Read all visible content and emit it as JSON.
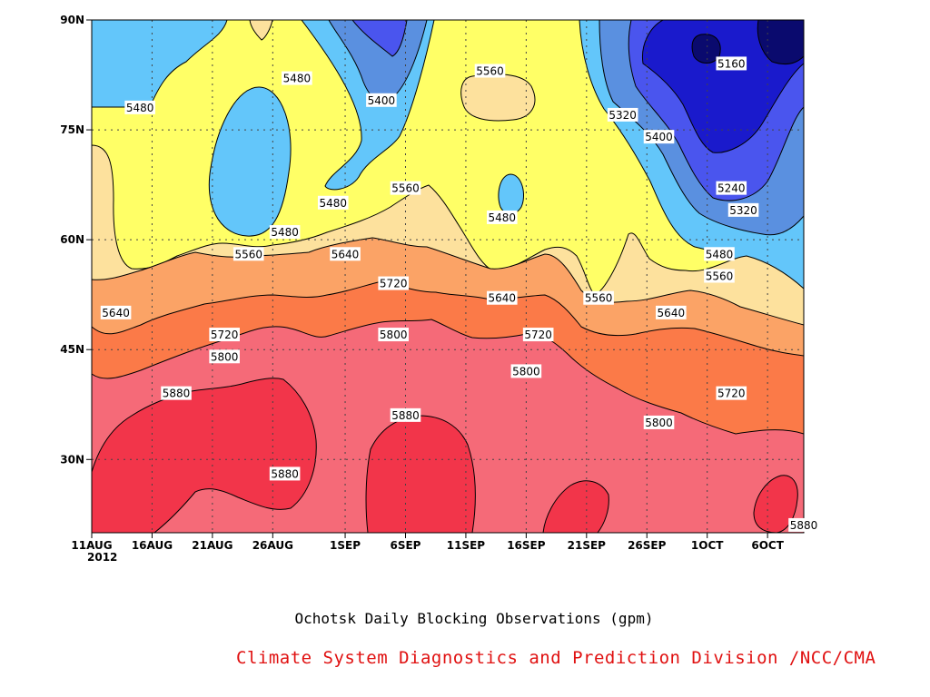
{
  "chart_data": {
    "type": "contour",
    "caption": "Ochotsk Daily Blocking Observations (gpm)",
    "credit": "Climate System Diagnostics and Prediction Division /NCC/CMA",
    "x_ticks": [
      "11AUG",
      "16AUG",
      "21AUG",
      "26AUG",
      "1SEP",
      "6SEP",
      "11SEP",
      "16SEP",
      "21SEP",
      "26SEP",
      "1OCT",
      "6OCT"
    ],
    "x_year": "2012",
    "y_ticks": [
      "30N",
      "45N",
      "60N",
      "75N",
      "90N"
    ],
    "xlim": [
      "2012-08-11",
      "2012-10-09"
    ],
    "ylim": [
      20,
      90
    ],
    "levels": [
      5160,
      5240,
      5320,
      5400,
      5480,
      5560,
      5640,
      5720,
      5800,
      5880
    ],
    "colors": {
      "below_5160": "#0a0a6e",
      "5160_5240": "#1a1acc",
      "5240_5320": "#4a55ee",
      "5320_5400": "#5a90e0",
      "5400_5480": "#63c6fa",
      "5480_5560": "#ffff66",
      "5560_5640": "#fde19d",
      "5640_5720": "#fba366",
      "5720_5800": "#fb7a48",
      "5800_5880": "#f56a78",
      "above_5880": "#f2354a"
    },
    "contour_labels": [
      {
        "value": "5160",
        "date": "2012-10-03",
        "lat": 84
      },
      {
        "value": "5240",
        "date": "2012-10-03",
        "lat": 67
      },
      {
        "value": "5320",
        "date": "2012-10-04",
        "lat": 64
      },
      {
        "value": "5320",
        "date": "2012-09-24",
        "lat": 77
      },
      {
        "value": "5400",
        "date": "2012-09-27",
        "lat": 74
      },
      {
        "value": "5400",
        "date": "2012-09-04",
        "lat": 79
      },
      {
        "value": "5480",
        "date": "2012-08-15",
        "lat": 78
      },
      {
        "value": "5480",
        "date": "2012-08-28",
        "lat": 82
      },
      {
        "value": "5480",
        "date": "2012-08-27",
        "lat": 61
      },
      {
        "value": "5480",
        "date": "2012-08-31",
        "lat": 65
      },
      {
        "value": "5480",
        "date": "2012-09-14",
        "lat": 63
      },
      {
        "value": "5480",
        "date": "2012-10-02",
        "lat": 58
      },
      {
        "value": "5560",
        "date": "2012-09-13",
        "lat": 83
      },
      {
        "value": "5560",
        "date": "2012-09-06",
        "lat": 67
      },
      {
        "value": "5560",
        "date": "2012-08-24",
        "lat": 58
      },
      {
        "value": "5560",
        "date": "2012-09-22",
        "lat": 52
      },
      {
        "value": "5560",
        "date": "2012-10-02",
        "lat": 55
      },
      {
        "value": "5640",
        "date": "2012-08-13",
        "lat": 50
      },
      {
        "value": "5640",
        "date": "2012-09-01",
        "lat": 58
      },
      {
        "value": "5640",
        "date": "2012-09-14",
        "lat": 52
      },
      {
        "value": "5640",
        "date": "2012-09-28",
        "lat": 50
      },
      {
        "value": "5720",
        "date": "2012-08-22",
        "lat": 47
      },
      {
        "value": "5720",
        "date": "2012-09-05",
        "lat": 54
      },
      {
        "value": "5720",
        "date": "2012-09-17",
        "lat": 47
      },
      {
        "value": "5720",
        "date": "2012-10-03",
        "lat": 39
      },
      {
        "value": "5800",
        "date": "2012-08-22",
        "lat": 44
      },
      {
        "value": "5800",
        "date": "2012-09-05",
        "lat": 47
      },
      {
        "value": "5800",
        "date": "2012-09-16",
        "lat": 42
      },
      {
        "value": "5800",
        "date": "2012-09-27",
        "lat": 35
      },
      {
        "value": "5880",
        "date": "2012-08-18",
        "lat": 39
      },
      {
        "value": "5880",
        "date": "2012-09-06",
        "lat": 36
      },
      {
        "value": "5880",
        "date": "2012-08-27",
        "lat": 28
      },
      {
        "value": "5880",
        "date": "2012-10-09",
        "lat": 21
      }
    ]
  }
}
